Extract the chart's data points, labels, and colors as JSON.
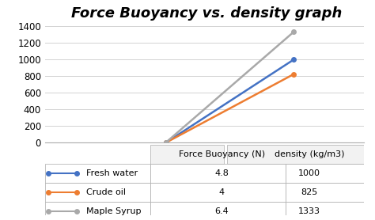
{
  "title": "Force Buoyancy vs. density graph",
  "series": [
    {
      "label": "Fresh water",
      "x": [
        4.8,
        1000
      ],
      "color": "#4472C4",
      "marker": "o"
    },
    {
      "label": "Crude oil",
      "x": [
        4.0,
        825
      ],
      "color": "#ED7D31",
      "marker": "o"
    },
    {
      "label": "Maple Syrup",
      "x": [
        6.4,
        1333
      ],
      "color": "#A9A9A9",
      "marker": "o"
    }
  ],
  "x_positions": [
    0.38,
    0.78
  ],
  "ylim": [
    0,
    1400
  ],
  "yticks": [
    0,
    200,
    400,
    600,
    800,
    1000,
    1200,
    1400
  ],
  "table_rows": [
    [
      "4.8",
      "1000"
    ],
    [
      "4",
      "825"
    ],
    [
      "6.4",
      "1333"
    ]
  ],
  "table_row_labels": [
    "Fresh water",
    "Crude oil",
    "Maple Syrup"
  ],
  "table_col_labels": [
    "Force Buoyancy (N)",
    "density (kg/m3)"
  ],
  "table_row_colors": [
    "#4472C4",
    "#ED7D31",
    "#A9A9A9"
  ],
  "bg_color": "#FFFFFF",
  "title_fontsize": 13,
  "axis_fontsize": 8.5,
  "legend_fontsize": 8.5,
  "table_fontsize": 8
}
